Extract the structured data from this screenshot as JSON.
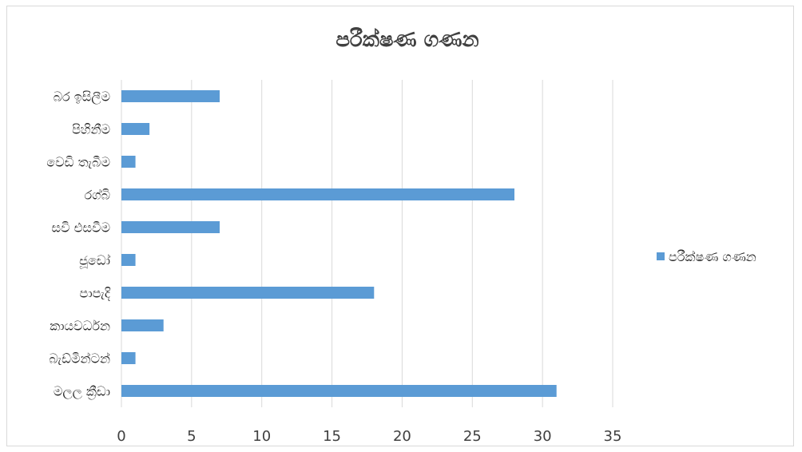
{
  "chart_data": {
    "type": "bar",
    "orientation": "horizontal",
    "title": "පරීක්ෂණ ගණන",
    "categories": [
      "බර ඉසිලීම",
      "පිහිනීම",
      "වෙඩි තැබීම",
      "රග්බි",
      "සවි එසවීම",
      "ජූඩෝ",
      "පාපැදි",
      "කායවර්ධන",
      "බැඩ්මින්ටන්",
      "මලල ක්‍රීඩා"
    ],
    "series": [
      {
        "name": "පරීක්ෂණ ගණන",
        "values": [
          7,
          2,
          1,
          28,
          7,
          1,
          18,
          3,
          1,
          31
        ]
      }
    ],
    "xlim": [
      0,
      35
    ],
    "xticks": [
      "0",
      "5",
      "10",
      "15",
      "20",
      "25",
      "30",
      "35"
    ],
    "grid": true,
    "legend_position": "right",
    "colors": {
      "bar": "#5B9BD5",
      "grid": "#D9D9D9"
    }
  }
}
